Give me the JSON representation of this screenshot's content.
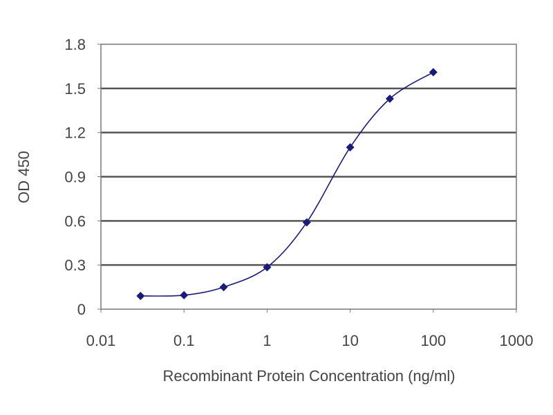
{
  "chart_data": {
    "type": "line",
    "title": "",
    "xlabel": "Recombinant Protein Concentration (ng/ml)",
    "ylabel": "OD 450",
    "xscale": "log",
    "xlim": [
      0.01,
      1000
    ],
    "ylim": [
      0,
      1.8
    ],
    "xticks": [
      0.01,
      0.1,
      1,
      10,
      100,
      1000
    ],
    "xtick_labels": [
      "0.01",
      "0.1",
      "1",
      "10",
      "100",
      "1000"
    ],
    "yticks": [
      0,
      0.3,
      0.6,
      0.9,
      1.2,
      1.5,
      1.8
    ],
    "ytick_labels": [
      "0",
      "0.3",
      "0.6",
      "0.9",
      "1.2",
      "1.5",
      "1.8"
    ],
    "grid": "horizontal",
    "line_color": "#1a1a7a",
    "marker": "diamond",
    "series": [
      {
        "x": [
          0.03,
          0.1,
          0.3,
          1,
          3,
          10,
          30,
          100
        ],
        "y": [
          0.09,
          0.095,
          0.15,
          0.285,
          0.59,
          1.1,
          1.43,
          1.61
        ]
      }
    ]
  }
}
